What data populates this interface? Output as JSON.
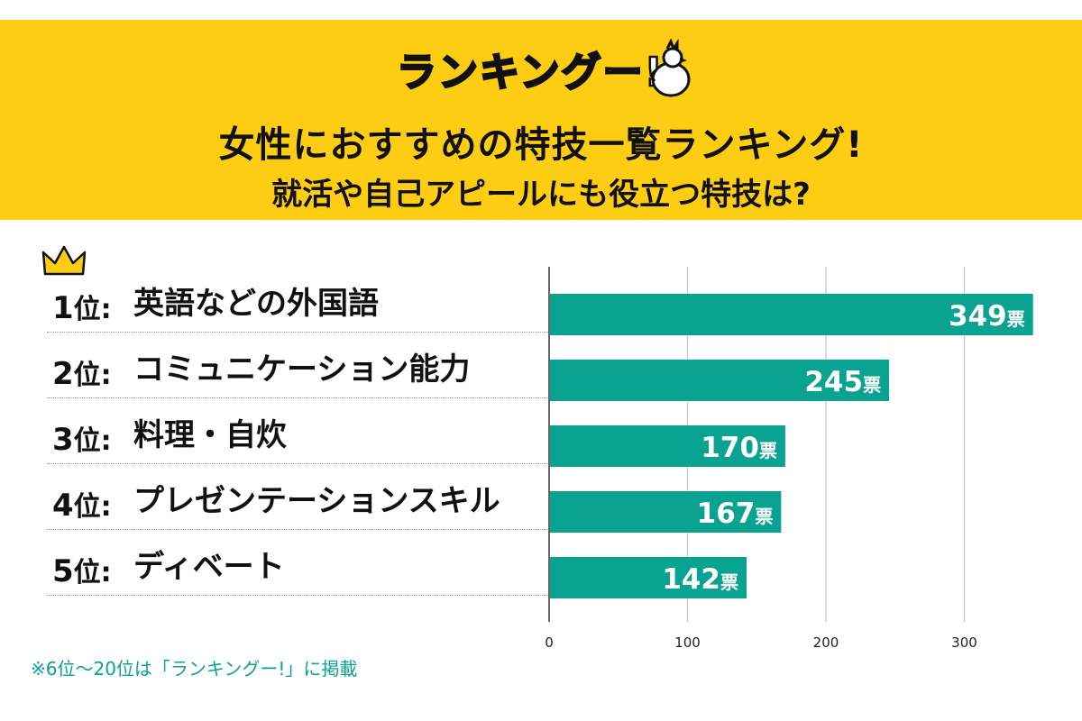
{
  "logo_text": "ランキングー!",
  "title": "女性におすすめの特技一覧ランキング!",
  "subtitle": "就活や自己アピールにも役立つ特技は?",
  "footnote": "※6位～20位は「ランキングー!」に掲載",
  "colors": {
    "banner": "#fccd12",
    "bar": "#0aa392",
    "accent": "#0aa392"
  },
  "ranks": [
    {
      "position": "1",
      "suffix": "位:",
      "label": "英語などの外国語"
    },
    {
      "position": "2",
      "suffix": "位:",
      "label": "コミュニケーション能力"
    },
    {
      "position": "3",
      "suffix": "位:",
      "label": "料理・自炊"
    },
    {
      "position": "4",
      "suffix": "位:",
      "label": "プレゼンテーションスキル"
    },
    {
      "position": "5",
      "suffix": "位:",
      "label": "ディベート"
    }
  ],
  "chart_data": {
    "type": "bar",
    "orientation": "horizontal",
    "categories": [
      "英語などの外国語",
      "コミュニケーション能力",
      "料理・自炊",
      "プレゼンテーションスキル",
      "ディベート"
    ],
    "values": [
      349,
      245,
      170,
      167,
      142
    ],
    "value_unit": "票",
    "xlim": [
      0,
      350
    ],
    "xticks": [
      0,
      100,
      200,
      300
    ],
    "grid": true
  }
}
